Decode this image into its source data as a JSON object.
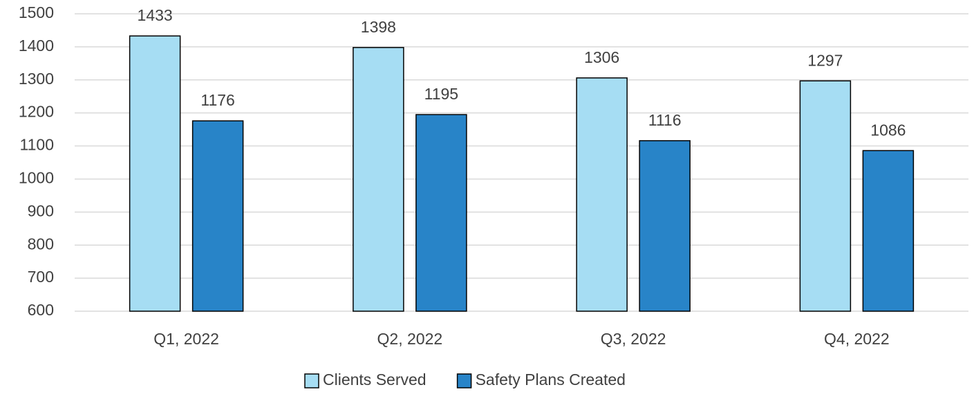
{
  "chart_data": {
    "type": "bar",
    "categories": [
      "Q1, 2022",
      "Q2, 2022",
      "Q3, 2022",
      "Q4, 2022"
    ],
    "series": [
      {
        "name": "Clients Served",
        "color": "#a6ddf3",
        "values": [
          1433,
          1398,
          1306,
          1297
        ]
      },
      {
        "name": "Safety Plans Created",
        "color": "#2884c8",
        "values": [
          1176,
          1195,
          1116,
          1086
        ]
      }
    ],
    "ylim": [
      600,
      1500
    ],
    "yticks": [
      600,
      700,
      800,
      900,
      1000,
      1100,
      1200,
      1300,
      1400,
      1500
    ],
    "grid": true,
    "legend": "bottom"
  }
}
